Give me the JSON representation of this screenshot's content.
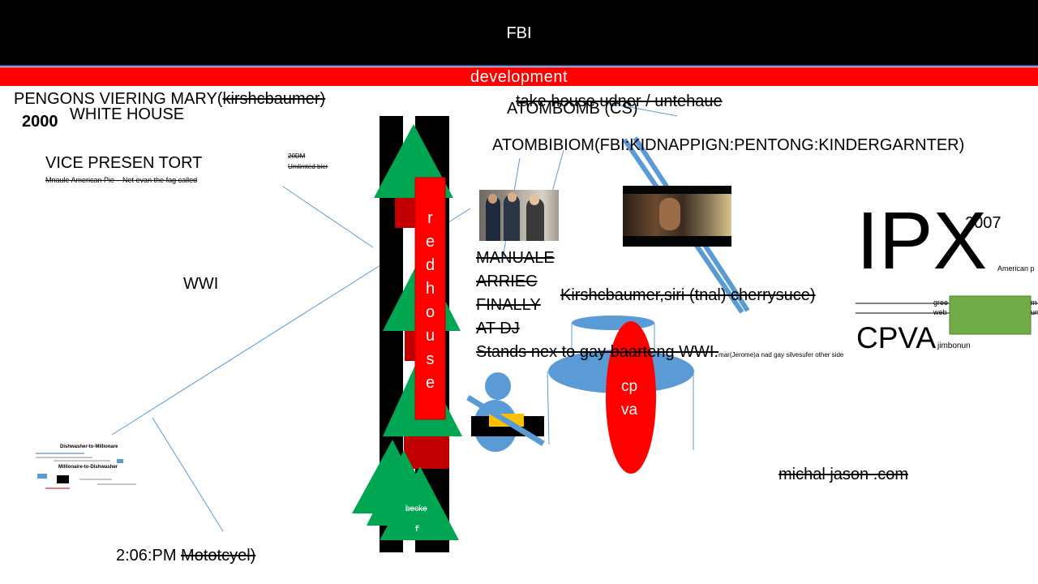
{
  "header": {
    "title": "FBI"
  },
  "banner": {
    "label": "development"
  },
  "left": {
    "line1_plain": "PENGONS VIERING MARY(",
    "line1_struck": "kirshcbaumer)",
    "year": "2000",
    "white_house": "WHITE HOUSE",
    "vice": "VICE PRESEN TORT",
    "vice_note": "Mnaule American Pie – Net evan the fag called",
    "dm_1": "20DM",
    "dm_2": "Umlimted bier",
    "wwi": "WWI",
    "time": "2:06:PM",
    "moto": "Mototcyel)"
  },
  "center": {
    "atombomb": "ATOMBOMB (CS)",
    "take_house": "take house udner / untehaue",
    "atombibiom": "ATOMBIBIOM(FBI:KIDNAPPIGN:PENTONG:KINDERGARNTER)",
    "manuale": "MANUALE",
    "arriec": "ARRIEC",
    "finally": "FINALLY",
    "at_dj": "AT DJ",
    "stands": "Stands nex to gay baarteng WWI.",
    "stands_note": "mar(Jerome)a nad gay silvesufer other side",
    "kirsh": "Kirshcbaumer,siri (tnal) cherrysuce)",
    "redhouse_letters": [
      "r",
      "e",
      "d",
      "h",
      "o",
      "u",
      "s",
      "e"
    ],
    "becke": "becke",
    "becke_r": "r",
    "cpva_1": "cp",
    "cpva_2": "va"
  },
  "right": {
    "ipx": "IPX",
    "ipx_year": "2007",
    "american": "American p",
    "green": "gree",
    "web": "web",
    "green_end": "m",
    "web_end": "un",
    "cpva": "CPVA",
    "jimbonun": "jimbonun",
    "website": "michal jason .com"
  },
  "thumbnail": {
    "title1": "Dishwasher-to-Millionare",
    "title2": "Millionaire-to-Dishwasher"
  },
  "colors": {
    "green": "#00a651",
    "red": "#ff0000",
    "dark_red": "#c00000",
    "blue": "#5b9bd5",
    "green_box": "#70ad47",
    "yellow": "#ffc000"
  }
}
